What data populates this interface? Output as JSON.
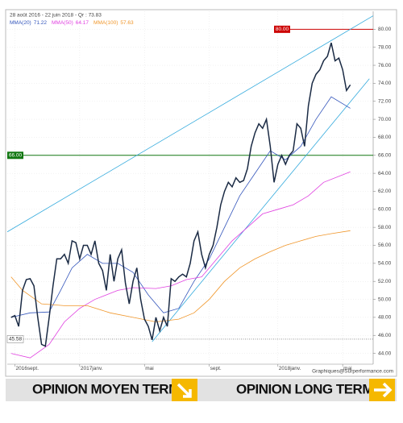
{
  "chart_data": {
    "type": "line",
    "subtitle": "28 août 2016 - 22 juin 2018 - Qr : 73.83",
    "color": "#1a2a44",
    "x": [
      0,
      1,
      2,
      3,
      4,
      5,
      6,
      7,
      8,
      9,
      10,
      11,
      12,
      13,
      14,
      15,
      16,
      17,
      18,
      19,
      20,
      21,
      22,
      23,
      24,
      25,
      26,
      27,
      28,
      29,
      30,
      31,
      32,
      33,
      34,
      35,
      36,
      37,
      38,
      39,
      40,
      41,
      42,
      43,
      44,
      45,
      46,
      47,
      48,
      49,
      50,
      51,
      52,
      53,
      54,
      55,
      56,
      57,
      58,
      59,
      60,
      61,
      62,
      63,
      64,
      65,
      66,
      67,
      68,
      69,
      70,
      71,
      72,
      73,
      74,
      75,
      76,
      77,
      78,
      79,
      80,
      81,
      82,
      83,
      84,
      85,
      86,
      87,
      88,
      89
    ],
    "values": [
      48.0,
      48.2,
      47.0,
      51.0,
      52.2,
      52.3,
      51.5,
      48.0,
      45.0,
      44.8,
      48.0,
      51.5,
      54.5,
      54.5,
      55.0,
      54.0,
      56.5,
      56.3,
      54.5,
      56.0,
      56.0,
      55.0,
      56.5,
      54.0,
      53.2,
      51.0,
      55.0,
      52.0,
      54.5,
      55.5,
      51.8,
      49.5,
      52.0,
      53.5,
      50.0,
      47.8,
      47.0,
      45.5,
      48.0,
      46.5,
      48.0,
      47.0,
      52.3,
      52.0,
      52.5,
      52.8,
      52.5,
      54.0,
      56.5,
      57.5,
      55.0,
      53.5,
      55.0,
      56.0,
      58.0,
      60.5,
      62.0,
      63.0,
      62.5,
      63.5,
      63.0,
      63.2,
      64.5,
      67.0,
      68.5,
      69.5,
      69.0,
      70.0,
      67.0,
      63.0,
      65.0,
      66.0,
      65.0,
      66.0,
      66.5,
      69.5,
      69.0,
      67.0,
      71.5,
      74.0,
      75.0,
      75.5,
      76.5,
      77.0,
      78.5,
      76.5,
      76.8,
      75.5,
      73.2,
      73.83
    ],
    "series": [
      {
        "name": "MMA(20)",
        "last": 71.22,
        "color": "#3355bb",
        "x": [
          0,
          5,
          10,
          13,
          16,
          20,
          24,
          28,
          32,
          36,
          40,
          44,
          48,
          52,
          56,
          60,
          64,
          68,
          72,
          76,
          80,
          84,
          89
        ],
        "values": [
          48.0,
          48.5,
          48.6,
          51.0,
          53.5,
          55.0,
          54.0,
          54.0,
          53.0,
          50.5,
          48.5,
          49.0,
          52.0,
          54.5,
          58.0,
          61.5,
          64.0,
          66.5,
          65.5,
          67.0,
          70.0,
          72.5,
          71.22
        ]
      },
      {
        "name": "MMA(50)",
        "last": 64.17,
        "color": "#e040e0",
        "x": [
          0,
          5,
          10,
          14,
          18,
          22,
          28,
          32,
          38,
          42,
          46,
          50,
          54,
          58,
          62,
          66,
          70,
          74,
          78,
          82,
          89
        ],
        "values": [
          44.0,
          43.5,
          45.0,
          47.5,
          49.0,
          50.0,
          51.0,
          51.3,
          51.2,
          51.5,
          52.2,
          52.5,
          54.5,
          56.5,
          58.0,
          59.5,
          60.0,
          60.5,
          61.5,
          63.0,
          64.17
        ]
      },
      {
        "name": "MMA(100)",
        "last": 57.63,
        "color": "#f0962a",
        "x": [
          0,
          3,
          8,
          14,
          20,
          26,
          32,
          38,
          44,
          48,
          52,
          56,
          60,
          64,
          68,
          72,
          76,
          80,
          84,
          89
        ],
        "values": [
          52.5,
          51.0,
          49.5,
          49.3,
          49.3,
          48.5,
          48.0,
          47.5,
          47.8,
          48.5,
          50.0,
          52.0,
          53.5,
          54.5,
          55.3,
          56.0,
          56.5,
          57.0,
          57.3,
          57.63
        ]
      }
    ],
    "trendlines": [
      {
        "color": "#33aadd",
        "x": [
          -1,
          95
        ],
        "values": [
          57.5,
          81.5
        ]
      },
      {
        "color": "#33aadd",
        "x": [
          37,
          94
        ],
        "values": [
          45.3,
          74.5
        ]
      }
    ],
    "hlines": [
      {
        "value": 80,
        "label": "80.00",
        "color": "#cc0000"
      },
      {
        "value": 66,
        "label": "66.00",
        "color": "#117711"
      },
      {
        "value": 45.58,
        "label": "45.58",
        "color": "#555555"
      }
    ],
    "xlim": [
      -1,
      95
    ],
    "xticks": [
      {
        "value": 1,
        "label": "2016sept."
      },
      {
        "value": 18,
        "label": "2017janv."
      },
      {
        "value": 35,
        "label": "mai"
      },
      {
        "value": 52,
        "label": "sept."
      },
      {
        "value": 70,
        "label": "2018janv."
      },
      {
        "value": 87,
        "label": "mai"
      }
    ],
    "ylim": [
      42.8,
      82
    ],
    "yticks": [
      {
        "value": 44,
        "label": "44.00"
      },
      {
        "value": 46,
        "label": "46.00"
      },
      {
        "value": 48,
        "label": "48.00"
      },
      {
        "value": 50,
        "label": "50.00"
      },
      {
        "value": 52,
        "label": "52.00"
      },
      {
        "value": 54,
        "label": "54.00"
      },
      {
        "value": 56,
        "label": "56.00"
      },
      {
        "value": 58,
        "label": "58.00"
      },
      {
        "value": 60,
        "label": "60.00"
      },
      {
        "value": 62,
        "label": "62.00"
      },
      {
        "value": 64,
        "label": "64.00"
      },
      {
        "value": 66,
        "label": "66.00"
      },
      {
        "value": 68,
        "label": "68.00"
      },
      {
        "value": 70,
        "label": "70.00"
      },
      {
        "value": 72,
        "label": "72.00"
      },
      {
        "value": 74,
        "label": "74.00"
      },
      {
        "value": 76,
        "label": "76.00"
      },
      {
        "value": 78,
        "label": "78.00"
      },
      {
        "value": 80,
        "label": "80.00"
      }
    ],
    "grid": true
  },
  "credit": "Graphiques@Surperformance.com",
  "opinions": [
    "OPINION MOYEN TERME",
    "OPINION LONG TERME"
  ]
}
